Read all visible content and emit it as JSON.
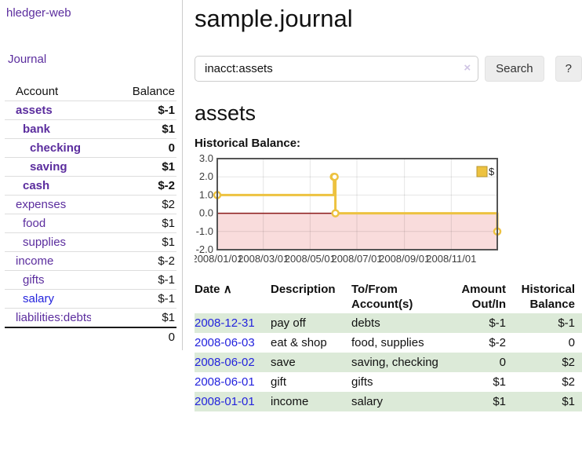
{
  "app": {
    "brand": "hledger-web",
    "nav_journal": "Journal"
  },
  "sidebar": {
    "headers": {
      "account": "Account",
      "balance": "Balance"
    },
    "accounts": [
      {
        "name": "assets",
        "balance": "$-1"
      },
      {
        "name": "bank",
        "balance": "$1"
      },
      {
        "name": "checking",
        "balance": "0"
      },
      {
        "name": "saving",
        "balance": "$1"
      },
      {
        "name": "cash",
        "balance": "$-2"
      },
      {
        "name": "expenses",
        "balance": "$2"
      },
      {
        "name": "food",
        "balance": "$1"
      },
      {
        "name": "supplies",
        "balance": "$1"
      },
      {
        "name": "income",
        "balance": "$-2"
      },
      {
        "name": "gifts",
        "balance": "$-1"
      },
      {
        "name": "salary",
        "balance": "$-1"
      },
      {
        "name": "liabilities:debts",
        "balance": "$1"
      }
    ],
    "total": "0"
  },
  "header": {
    "title": "sample.journal"
  },
  "search": {
    "value": "inacct:assets",
    "clear_icon": "×",
    "button_label": "Search",
    "help_label": "?"
  },
  "account_page": {
    "title": "assets",
    "chart_label": "Historical Balance:"
  },
  "chart_data": {
    "type": "line",
    "step": true,
    "series": [
      {
        "name": "$",
        "color": "#edc240",
        "points": [
          {
            "x": "2008-01-01",
            "y": 1
          },
          {
            "x": "2008-06-01",
            "y": 2
          },
          {
            "x": "2008-06-02",
            "y": 2
          },
          {
            "x": "2008-06-03",
            "y": 0
          },
          {
            "x": "2008-12-31",
            "y": -1
          }
        ]
      }
    ],
    "xlim": [
      "2008-01-01",
      "2008-12-31"
    ],
    "ylim": [
      -2,
      3
    ],
    "yticks": [
      3,
      2,
      1,
      0,
      -1,
      -2
    ],
    "xticks": [
      "2008/01/01",
      "2008/03/01",
      "2008/05/01",
      "2008/07/01",
      "2008/09/01",
      "2008/11/01"
    ],
    "negative_fill": "#f9dcdc",
    "zero_line_color": "#8b1a1a",
    "grid": true,
    "legend_position": "top-right"
  },
  "register": {
    "headers": {
      "date": "Date",
      "date_sort_indicator": "∧",
      "description": "Description",
      "accounts": "To/From Account(s)",
      "amount": "Amount Out/In",
      "balance": "Historical Balance"
    },
    "rows": [
      {
        "date": "2008-12-31",
        "description": "pay off",
        "accounts": "debts",
        "amount": "$-1",
        "balance": "$-1"
      },
      {
        "date": "2008-06-03",
        "description": "eat & shop",
        "accounts": "food, supplies",
        "amount": "$-2",
        "balance": "0"
      },
      {
        "date": "2008-06-02",
        "description": "save",
        "accounts": "saving, checking",
        "amount": "0",
        "balance": "$2"
      },
      {
        "date": "2008-06-01",
        "description": "gift",
        "accounts": "gifts",
        "amount": "$1",
        "balance": "$2"
      },
      {
        "date": "2008-01-01",
        "description": "income",
        "accounts": "salary",
        "amount": "$1",
        "balance": "$1"
      }
    ]
  }
}
